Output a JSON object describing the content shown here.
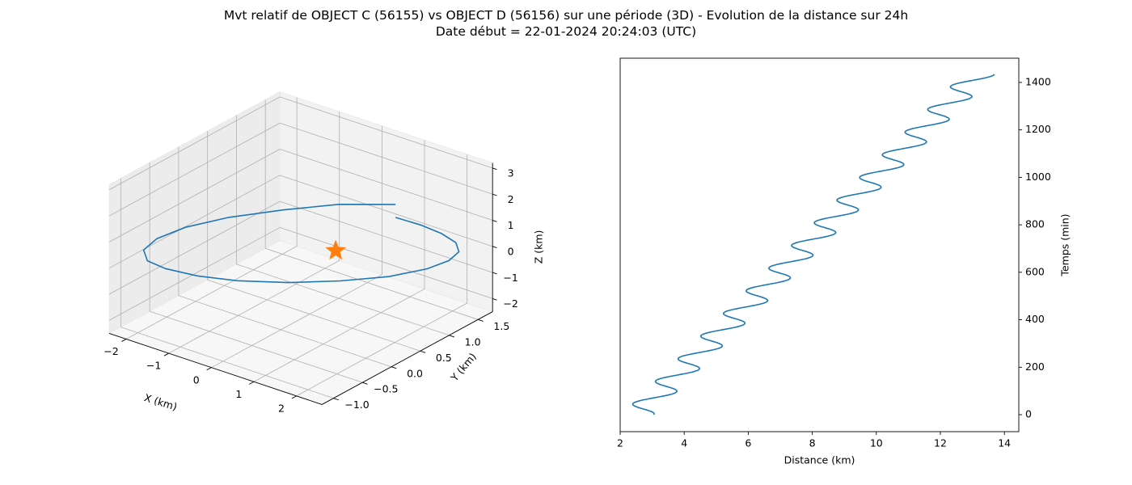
{
  "title_line1": "Mvt relatif de OBJECT C (56155) vs OBJECT D (56156) sur une période (3D) - Evolution de la distance sur 24h",
  "title_line2": "Date début = 22-01-2024 20:24:03 (UTC)",
  "chart_data": [
    {
      "type": "line",
      "projection": "3d",
      "xlabel": "X (km)",
      "ylabel": "Y (km)",
      "zlabel": "Z (km)",
      "xticks": [
        "−2",
        "−1",
        "0",
        "1",
        "2"
      ],
      "yticks": [
        "−1.0",
        "−0.5",
        "0.0",
        "0.5",
        "1.0",
        "1.5"
      ],
      "zticks": [
        "−2",
        "−1",
        "0",
        "1",
        "2",
        "3"
      ],
      "xlim": [
        -2.4,
        2.6
      ],
      "ylim": [
        -1.2,
        1.75
      ],
      "zlim": [
        -2.5,
        3.2
      ],
      "series": [
        {
          "color": "#1f77b4",
          "points": [
            {
              "x": 1.95,
              "y": 0.55,
              "z": 2.7
            },
            {
              "x": 1.3,
              "y": 0.05,
              "z": 2.95
            },
            {
              "x": 0.6,
              "y": -0.4,
              "z": 2.9
            },
            {
              "x": -0.2,
              "y": -0.75,
              "z": 2.6
            },
            {
              "x": -0.95,
              "y": -0.95,
              "z": 2.05
            },
            {
              "x": -1.55,
              "y": -1.0,
              "z": 1.35
            },
            {
              "x": -2.0,
              "y": -0.9,
              "z": 0.55
            },
            {
              "x": -2.25,
              "y": -0.65,
              "z": -0.3
            },
            {
              "x": -2.3,
              "y": -0.3,
              "z": -1.05
            },
            {
              "x": -2.1,
              "y": 0.1,
              "z": -1.7
            },
            {
              "x": -1.7,
              "y": 0.5,
              "z": -2.15
            },
            {
              "x": -1.05,
              "y": 0.9,
              "z": -2.35
            },
            {
              "x": -0.3,
              "y": 1.25,
              "z": -2.3
            },
            {
              "x": 0.5,
              "y": 1.5,
              "z": -2.0
            },
            {
              "x": 1.2,
              "y": 1.65,
              "z": -1.5
            },
            {
              "x": 1.75,
              "y": 1.62,
              "z": -0.85
            },
            {
              "x": 2.15,
              "y": 1.5,
              "z": -0.15
            },
            {
              "x": 2.35,
              "y": 1.3,
              "z": 0.55
            },
            {
              "x": 2.35,
              "y": 1.05,
              "z": 1.2
            },
            {
              "x": 2.2,
              "y": 0.8,
              "z": 1.75
            },
            {
              "x": 1.95,
              "y": 0.55,
              "z": 2.2
            }
          ]
        },
        {
          "color": "#ff7f0e",
          "marker": "star",
          "points": [
            {
              "x": 0,
              "y": 0,
              "z": 0
            }
          ]
        }
      ]
    },
    {
      "type": "line",
      "xlabel": "Distance (km)",
      "ylabel": "Temps (min)",
      "xticks": [
        2,
        4,
        6,
        8,
        10,
        12,
        14
      ],
      "yticks": [
        0,
        200,
        400,
        600,
        800,
        1000,
        1200,
        1400
      ],
      "xlim": [
        2.0,
        14.45
      ],
      "ylim": [
        -71.5,
        1502
      ],
      "series": [
        {
          "color": "#1f77b4",
          "model": {
            "start_distance": 2.55,
            "end_distance": 13.2,
            "t_max": 1435,
            "oscillation_amplitude": 0.5,
            "orbit_period_min": 95.5
          },
          "points": [
            {
              "x": 3.0,
              "y": 0
            },
            {
              "x": 2.5,
              "y": 50
            },
            {
              "x": 3.5,
              "y": 110
            },
            {
              "x": 3.0,
              "y": 150
            },
            {
              "x": 4.0,
              "y": 200
            },
            {
              "x": 3.5,
              "y": 250
            },
            {
              "x": 14.0,
              "y": 1435
            }
          ]
        }
      ]
    }
  ]
}
